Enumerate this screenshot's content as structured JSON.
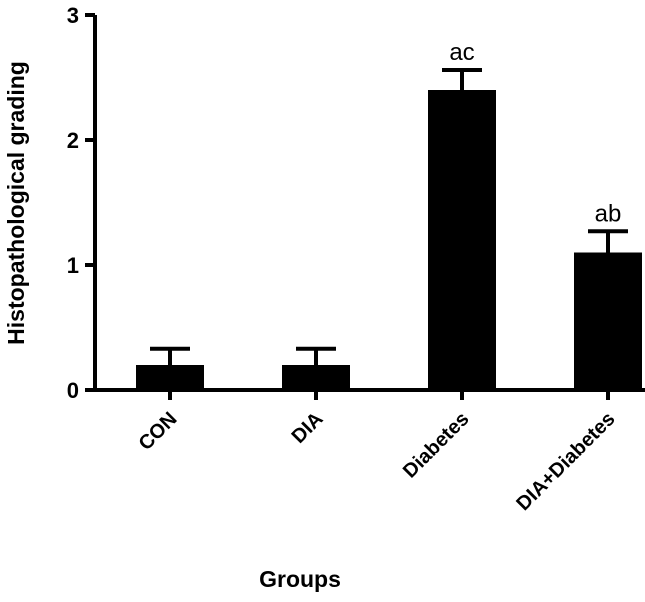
{
  "chart_data": {
    "type": "bar",
    "title": "",
    "xlabel": "Groups",
    "ylabel": "Histopathological grading",
    "categories": [
      "CON",
      "DIA",
      "Diabetes",
      "DIA+Diabetes"
    ],
    "values": [
      0.2,
      0.2,
      2.4,
      1.1
    ],
    "error": [
      0.13,
      0.13,
      0.16,
      0.17
    ],
    "annotations": [
      "",
      "",
      "ac",
      "ab"
    ],
    "ylim": [
      0,
      3
    ],
    "yticks": [
      "0",
      "1",
      "2",
      "3"
    ],
    "bar_color": "#000000",
    "grid": false,
    "legend": "none"
  }
}
